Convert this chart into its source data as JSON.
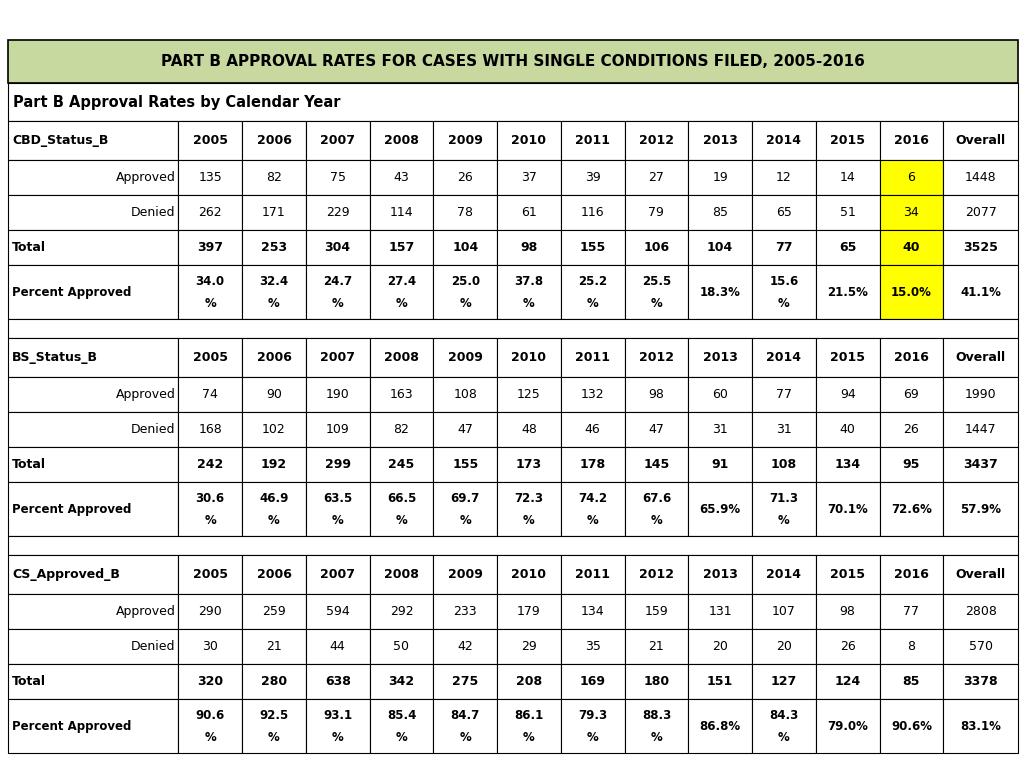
{
  "title": "PART B APPROVAL RATES FOR CASES WITH SINGLE CONDITIONS FILED, 2005-2016",
  "subtitle": "Part B Approval Rates by Calendar Year",
  "title_bg": "#c8d9a0",
  "yellow_bg": "#ffff00",
  "border_color": "#000000",
  "col_headers": [
    "2005",
    "2006",
    "2007",
    "2008",
    "2009",
    "2010",
    "2011",
    "2012",
    "2013",
    "2014",
    "2015",
    "2016",
    "Overall"
  ],
  "sections": [
    {
      "header": "CBD_Status_B",
      "approved": [
        "135",
        "82",
        "75",
        "43",
        "26",
        "37",
        "39",
        "27",
        "19",
        "12",
        "14",
        "6",
        "1448"
      ],
      "denied": [
        "262",
        "171",
        "229",
        "114",
        "78",
        "61",
        "116",
        "79",
        "85",
        "65",
        "51",
        "34",
        "2077"
      ],
      "total": [
        "397",
        "253",
        "304",
        "157",
        "104",
        "98",
        "155",
        "106",
        "104",
        "77",
        "65",
        "40",
        "3525"
      ],
      "pct_top": [
        "34.0",
        "32.4",
        "24.7",
        "27.4",
        "25.0",
        "37.8",
        "25.2",
        "25.5",
        "",
        "15.6",
        "",
        "",
        ""
      ],
      "pct_bot": [
        "%",
        "%",
        "%",
        "%",
        "%",
        "%",
        "%",
        "%",
        "18.3%",
        "%",
        "21.5%",
        "15.0%",
        "41.1%"
      ],
      "highlight_col": 11
    },
    {
      "header": "BS_Status_B",
      "approved": [
        "74",
        "90",
        "190",
        "163",
        "108",
        "125",
        "132",
        "98",
        "60",
        "77",
        "94",
        "69",
        "1990"
      ],
      "denied": [
        "168",
        "102",
        "109",
        "82",
        "47",
        "48",
        "46",
        "47",
        "31",
        "31",
        "40",
        "26",
        "1447"
      ],
      "total": [
        "242",
        "192",
        "299",
        "245",
        "155",
        "173",
        "178",
        "145",
        "91",
        "108",
        "134",
        "95",
        "3437"
      ],
      "pct_top": [
        "30.6",
        "46.9",
        "63.5",
        "66.5",
        "69.7",
        "72.3",
        "74.2",
        "67.6",
        "",
        "71.3",
        "",
        "",
        ""
      ],
      "pct_bot": [
        "%",
        "%",
        "%",
        "%",
        "%",
        "%",
        "%",
        "%",
        "65.9%",
        "%",
        "70.1%",
        "72.6%",
        "57.9%"
      ],
      "highlight_col": -1
    },
    {
      "header": "CS_Approved_B",
      "approved": [
        "290",
        "259",
        "594",
        "292",
        "233",
        "179",
        "134",
        "159",
        "131",
        "107",
        "98",
        "77",
        "2808"
      ],
      "denied": [
        "30",
        "21",
        "44",
        "50",
        "42",
        "29",
        "35",
        "21",
        "20",
        "20",
        "26",
        "8",
        "570"
      ],
      "total": [
        "320",
        "280",
        "638",
        "342",
        "275",
        "208",
        "169",
        "180",
        "151",
        "127",
        "124",
        "85",
        "3378"
      ],
      "pct_top": [
        "90.6",
        "92.5",
        "93.1",
        "85.4",
        "84.7",
        "86.1",
        "79.3",
        "88.3",
        "",
        "84.3",
        "",
        "",
        ""
      ],
      "pct_bot": [
        "%",
        "%",
        "%",
        "%",
        "%",
        "%",
        "%",
        "%",
        "86.8%",
        "%",
        "79.0%",
        "90.6%",
        "83.1%"
      ],
      "highlight_col": -1
    }
  ]
}
